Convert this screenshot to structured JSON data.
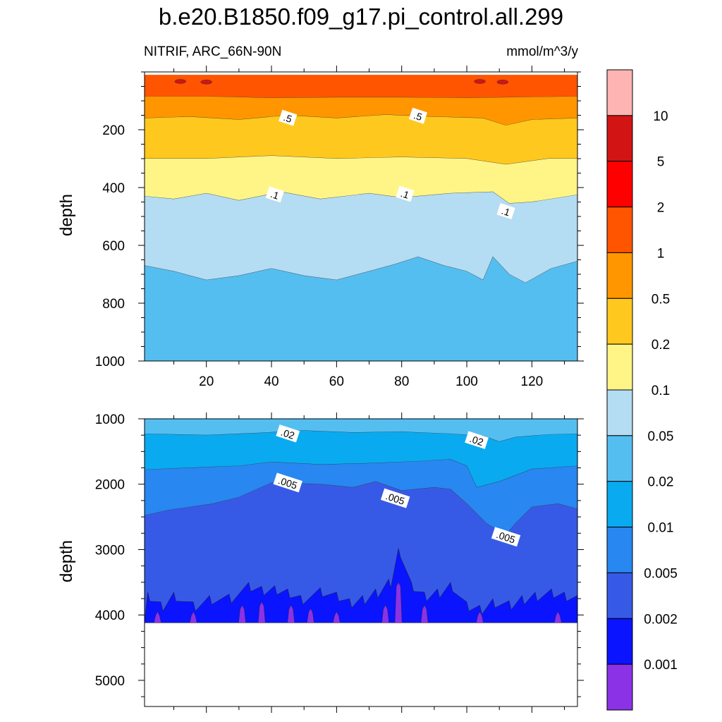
{
  "title": "b.e20.B1850.f09_g17.pi_control.all.299",
  "subtitle_left": "NITRIF, ARC_66N-90N",
  "subtitle_right": "mmol/m^3/y",
  "chart_data": [
    {
      "type": "heatmap",
      "panel": "upper",
      "ylabel": "depth",
      "xlabel": "",
      "xlim": [
        1,
        134
      ],
      "ylim": [
        1000,
        0
      ],
      "xticks": [
        "20",
        "40",
        "60",
        "80",
        "100",
        "120"
      ],
      "xtick_values": [
        20,
        40,
        60,
        80,
        100,
        120
      ],
      "yticks": [
        "200",
        "400",
        "600",
        "800",
        "1000"
      ],
      "ytick_values": [
        200,
        400,
        600,
        800,
        1000
      ],
      "contour_labels": [
        {
          "text": ".5",
          "x": 45,
          "y": 160
        },
        {
          "text": ".5",
          "x": 85,
          "y": 153
        },
        {
          "text": ".1",
          "x": 41,
          "y": 425
        },
        {
          "text": ".1",
          "x": 81,
          "y": 423
        },
        {
          "text": ".1",
          "x": 112,
          "y": 483
        }
      ],
      "bands": [
        {
          "fill": "#FF5500",
          "upper": [
            [
              1,
              10
            ],
            [
              134,
              10
            ]
          ],
          "lower": [
            [
              1,
              85
            ],
            [
              20,
              85
            ],
            [
              40,
              90
            ],
            [
              60,
              88
            ],
            [
              80,
              88
            ],
            [
              100,
              90
            ],
            [
              134,
              85
            ]
          ]
        },
        {
          "fill": "#FF9600",
          "upper": "prev",
          "lower": [
            [
              1,
              160
            ],
            [
              15,
              155
            ],
            [
              30,
              165
            ],
            [
              45,
              150
            ],
            [
              60,
              160
            ],
            [
              75,
              148
            ],
            [
              90,
              155
            ],
            [
              105,
              160
            ],
            [
              112,
              185
            ],
            [
              120,
              165
            ],
            [
              134,
              160
            ]
          ]
        },
        {
          "fill": "#FFC81E",
          "upper": "prev",
          "lower": [
            [
              1,
              300
            ],
            [
              20,
              300
            ],
            [
              40,
              290
            ],
            [
              60,
              300
            ],
            [
              80,
              295
            ],
            [
              100,
              300
            ],
            [
              112,
              320
            ],
            [
              125,
              300
            ],
            [
              134,
              300
            ]
          ]
        },
        {
          "fill": "#FFF587",
          "upper": "prev",
          "lower": [
            [
              1,
              430
            ],
            [
              10,
              440
            ],
            [
              20,
              420
            ],
            [
              30,
              445
            ],
            [
              43,
              415
            ],
            [
              55,
              440
            ],
            [
              70,
              420
            ],
            [
              80,
              435
            ],
            [
              95,
              420
            ],
            [
              108,
              415
            ],
            [
              113,
              455
            ],
            [
              120,
              450
            ],
            [
              134,
              425
            ]
          ]
        },
        {
          "fill": "#B4DCF2",
          "upper": "prev",
          "lower": [
            [
              1,
              670
            ],
            [
              10,
              690
            ],
            [
              20,
              720
            ],
            [
              30,
              705
            ],
            [
              40,
              680
            ],
            [
              50,
              705
            ],
            [
              60,
              720
            ],
            [
              70,
              690
            ],
            [
              78,
              665
            ],
            [
              85,
              640
            ],
            [
              93,
              670
            ],
            [
              100,
              690
            ],
            [
              105,
              720
            ],
            [
              108,
              640
            ],
            [
              113,
              700
            ],
            [
              118,
              730
            ],
            [
              126,
              680
            ],
            [
              134,
              655
            ]
          ]
        },
        {
          "fill": "#55BEF0",
          "upper": "prev",
          "lower": [
            [
              1,
              1000
            ],
            [
              134,
              1000
            ]
          ]
        }
      ],
      "blobs": [
        {
          "fill": "#D21414",
          "x": 20,
          "y": 35
        },
        {
          "fill": "#D21414",
          "x": 111,
          "y": 35
        },
        {
          "fill": "#D21414",
          "x": 104,
          "y": 33
        },
        {
          "fill": "#D21414",
          "x": 12,
          "y": 33
        }
      ]
    },
    {
      "type": "heatmap",
      "panel": "lower",
      "ylabel": "depth",
      "xlabel": "",
      "xlim": [
        1,
        134
      ],
      "ylim": [
        5400,
        1000
      ],
      "yticks": [
        "1000",
        "2000",
        "3000",
        "4000",
        "5000"
      ],
      "ytick_values": [
        1000,
        2000,
        3000,
        4000,
        5000
      ],
      "data_bottom": 4120,
      "contour_labels": [
        {
          "text": ".02",
          "x": 45,
          "y": 1230
        },
        {
          "text": ".02",
          "x": 103,
          "y": 1330
        },
        {
          "text": ".005",
          "x": 45,
          "y": 1980
        },
        {
          "text": ".005",
          "x": 78,
          "y": 2220
        },
        {
          "text": ".005",
          "x": 112,
          "y": 2810
        }
      ],
      "bands": [
        {
          "fill": "#55BEF0",
          "upper": [
            [
              1,
              1000
            ],
            [
              134,
              1000
            ]
          ],
          "lower": [
            [
              1,
              1230
            ],
            [
              20,
              1250
            ],
            [
              35,
              1220
            ],
            [
              50,
              1180
            ],
            [
              65,
              1210
            ],
            [
              80,
              1200
            ],
            [
              95,
              1230
            ],
            [
              105,
              1260
            ],
            [
              110,
              1350
            ],
            [
              115,
              1280
            ],
            [
              125,
              1240
            ],
            [
              134,
              1230
            ]
          ]
        },
        {
          "fill": "#0AAAF0",
          "upper": "prev",
          "lower": [
            [
              1,
              1780
            ],
            [
              10,
              1760
            ],
            [
              20,
              1740
            ],
            [
              30,
              1720
            ],
            [
              40,
              1660
            ],
            [
              55,
              1700
            ],
            [
              70,
              1680
            ],
            [
              85,
              1650
            ],
            [
              95,
              1620
            ],
            [
              100,
              1720
            ],
            [
              103,
              2050
            ],
            [
              110,
              1960
            ],
            [
              120,
              1770
            ],
            [
              134,
              1720
            ]
          ]
        },
        {
          "fill": "#2887F0",
          "upper": "prev",
          "lower": [
            [
              1,
              2480
            ],
            [
              8,
              2400
            ],
            [
              15,
              2350
            ],
            [
              22,
              2300
            ],
            [
              30,
              2200
            ],
            [
              40,
              1980
            ],
            [
              55,
              2000
            ],
            [
              65,
              2050
            ],
            [
              72,
              1960
            ],
            [
              80,
              2100
            ],
            [
              90,
              2050
            ],
            [
              95,
              2080
            ],
            [
              100,
              2300
            ],
            [
              106,
              2600
            ],
            [
              112,
              2780
            ],
            [
              115,
              2600
            ],
            [
              120,
              2350
            ],
            [
              128,
              2300
            ],
            [
              134,
              2380
            ]
          ]
        },
        {
          "fill": "#375AE6",
          "upper": "prev",
          "lower": [
            [
              1,
              4120
            ],
            [
              134,
              4120
            ]
          ]
        }
      ],
      "spikes_002": [
        [
          2,
          3650
        ],
        [
          6,
          3800
        ],
        [
          10,
          3650
        ],
        [
          16,
          3800
        ],
        [
          21,
          3700
        ],
        [
          27,
          3680
        ],
        [
          33,
          3500
        ],
        [
          37,
          3560
        ],
        [
          41,
          3550
        ],
        [
          45,
          3600
        ],
        [
          49,
          3700
        ],
        [
          55,
          3580
        ],
        [
          60,
          3650
        ],
        [
          64,
          3750
        ],
        [
          68,
          3700
        ],
        [
          72,
          3600
        ],
        [
          76,
          3450
        ],
        [
          79,
          2980
        ],
        [
          83,
          3500
        ],
        [
          87,
          3650
        ],
        [
          91,
          3600
        ],
        [
          95,
          3500
        ],
        [
          100,
          3800
        ],
        [
          104,
          3850
        ],
        [
          108,
          3750
        ],
        [
          113,
          3780
        ],
        [
          117,
          3700
        ],
        [
          121,
          3650
        ],
        [
          126,
          3600
        ],
        [
          130,
          3650
        ],
        [
          134,
          3700
        ]
      ],
      "spikes_001": [
        [
          5,
          3950
        ],
        [
          16,
          3950
        ],
        [
          31,
          3850
        ],
        [
          37,
          3800
        ],
        [
          46,
          3850
        ],
        [
          52,
          3900
        ],
        [
          60,
          3950
        ],
        [
          75,
          3850
        ],
        [
          79,
          3500
        ],
        [
          87,
          3850
        ],
        [
          104,
          3950
        ],
        [
          128,
          3950
        ]
      ]
    }
  ],
  "colorbar": {
    "labels": [
      "10",
      "5",
      "2",
      "1",
      "0.5",
      "0.2",
      "0.1",
      "0.05",
      "0.02",
      "0.01",
      "0.005",
      "0.002",
      "0.001"
    ],
    "colors": [
      "#FFB4B4",
      "#D21414",
      "#FF0000",
      "#FF5500",
      "#FF9600",
      "#FFC81E",
      "#FFF587",
      "#B4DCF2",
      "#55BEF0",
      "#0AAAF0",
      "#2887F0",
      "#375AE6",
      "#0A14FF",
      "#8C32E6"
    ]
  }
}
